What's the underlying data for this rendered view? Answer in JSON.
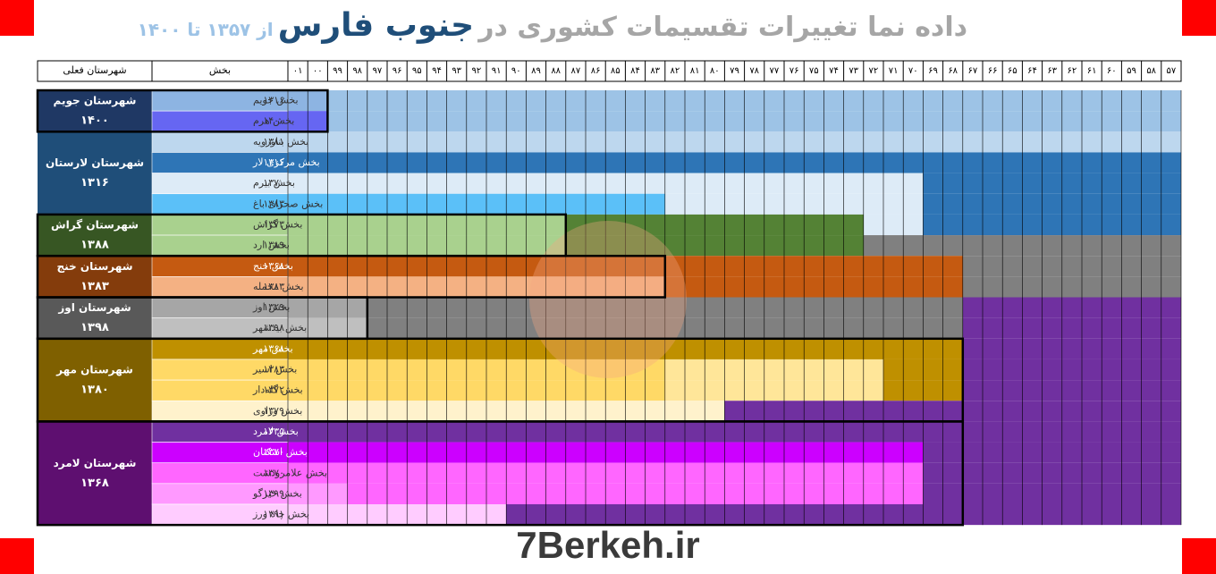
{
  "title": {
    "main": "داده نما تغییرات تقسیمات کشوری در",
    "region": "جنوب فارس",
    "range": "از ۱۳۵۷ تا ۱۴۰۰"
  },
  "header": {
    "county": "شهرستان فعلی",
    "district": "بخش",
    "years": [
      "۰۱",
      "۰۰",
      "۹۹",
      "۹۸",
      "۹۷",
      "۹۶",
      "۹۵",
      "۹۴",
      "۹۳",
      "۹۲",
      "۹۱",
      "۹۰",
      "۸۹",
      "۸۸",
      "۸۷",
      "۸۶",
      "۸۵",
      "۸۴",
      "۸۳",
      "۸۲",
      "۸۱",
      "۸۰",
      "۷۹",
      "۷۸",
      "۷۷",
      "۷۶",
      "۷۵",
      "۷۴",
      "۷۳",
      "۷۲",
      "۷۱",
      "۷۰",
      "۶۹",
      "۶۸",
      "۶۷",
      "۶۶",
      "۶۵",
      "۶۴",
      "۶۳",
      "۶۲",
      "۶۱",
      "۶۰",
      "۵۹",
      "۵۸",
      "۵۷"
    ]
  },
  "counties": [
    {
      "name": "شهرستان جویم",
      "year": "۱۴۰۰",
      "districts": [
        {
          "name": "بخش جویم",
          "year": "۱۳۱۶"
        },
        {
          "name": "بخش هرم",
          "year": "۱۴۰۰"
        }
      ]
    },
    {
      "name": "شهرستان لارستان",
      "year": "۱۳۱۶",
      "districts": [
        {
          "name": "بخش بناورویه",
          "year": "۱۳۸۱"
        },
        {
          "name": "بخش مرکزی لار",
          "year": "۱۳۱۶"
        },
        {
          "name": "بخش بیرم",
          "year": "۱۳۷۰"
        },
        {
          "name": "بخش صحرای باغ",
          "year": "۱۳۸۳"
        }
      ]
    },
    {
      "name": "شهرستان گراش",
      "year": "۱۳۸۸",
      "districts": [
        {
          "name": "بخش گراش",
          "year": "۱۳۷۳"
        },
        {
          "name": "بخش ارد",
          "year": "۱۳۸۹"
        }
      ]
    },
    {
      "name": "شهرستان خنج",
      "year": "۱۳۸۳",
      "districts": [
        {
          "name": "بخش خنج",
          "year": "۱۳۶۸"
        },
        {
          "name": "بخش محمله",
          "year": "۱۳۸۳"
        }
      ]
    },
    {
      "name": "شهرستان اوز",
      "year": "۱۳۹۸",
      "districts": [
        {
          "name": "بخش اوز",
          "year": "۱۳۲۹"
        },
        {
          "name": "بخش بیدشهر",
          "year": "۱۳۹۸"
        }
      ]
    },
    {
      "name": "شهرستان مهر",
      "year": "۱۳۸۰",
      "districts": [
        {
          "name": "بخش مهر",
          "year": "۱۳۶۸"
        },
        {
          "name": "بخش اسیر",
          "year": "۱۳۸۳"
        },
        {
          "name": "بخش گله‌دار",
          "year": "۱۳۷۲"
        },
        {
          "name": "بخش وراوی",
          "year": "۱۳۷۹"
        }
      ]
    },
    {
      "name": "شهرستان لامرد",
      "year": "۱۳۶۸",
      "districts": [
        {
          "name": "بخش لامرد",
          "year": "۱۳۳۵"
        },
        {
          "name": "بخش اشکنان",
          "year": "۱۳۷۰"
        },
        {
          "name": "بخش علامرودشت",
          "year": "۱۳۷۰"
        },
        {
          "name": "بخش خیرگو",
          "year": "۱۳۹۹"
        },
        {
          "name": "بخش چاه ورز",
          "year": "۱۳۹۱"
        }
      ]
    }
  ],
  "footer": "7Berkeh.ir"
}
